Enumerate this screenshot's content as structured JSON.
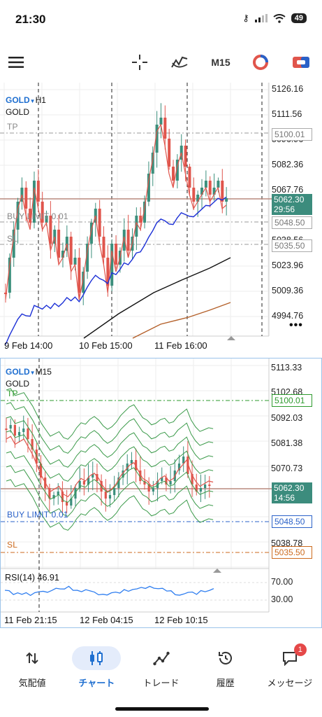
{
  "status": {
    "time": "21:30",
    "battery": "49"
  },
  "toolbar": {
    "timeframe": "M15"
  },
  "chart1": {
    "symbol": "GOLD",
    "timeframe": "H1",
    "description": "GOLD",
    "levels": {
      "tp": "TP",
      "buy_limit": "BUY LIMIT 0.01",
      "sl": "SL"
    },
    "price_labels": [
      "5126.16",
      "5111.56",
      "5096.96",
      "5082.36",
      "5067.76",
      "5038.56",
      "5023.96",
      "5009.36",
      "4994.76"
    ],
    "tp_box": "5100.01",
    "current_price": "5062.30",
    "countdown": "29:56",
    "buy_box": "5048.50",
    "sl_box": "5035.50",
    "time_labels": [
      "9 Feb 14:00",
      "10 Feb 15:00",
      "11 Feb 16:00"
    ],
    "more": "•••"
  },
  "chart2": {
    "symbol": "GOLD",
    "timeframe": "M15",
    "description": "GOLD",
    "levels": {
      "tp": "TP",
      "buy_limit": "BUY LIMIT 0.01",
      "sl": "SL"
    },
    "price_labels": [
      "5113.33",
      "5102.68",
      "5092.03",
      "5081.38",
      "5070.73",
      "5038.78"
    ],
    "tp_box": "5100.01",
    "current_price": "5062.30",
    "countdown": "14:56",
    "buy_box": "5048.50",
    "sl_box": "5035.50",
    "rsi_label": "RSI(14) 46.91",
    "rsi_levels": [
      "70.00",
      "30.00"
    ],
    "time_labels": [
      "11 Feb 21:15",
      "12 Feb 04:15",
      "12 Feb 10:15"
    ]
  },
  "nav": [
    {
      "label": "気配値",
      "icon": "quotes-icon"
    },
    {
      "label": "チャート",
      "icon": "chart-icon",
      "active": true
    },
    {
      "label": "トレード",
      "icon": "trade-icon"
    },
    {
      "label": "履歴",
      "icon": "history-icon"
    },
    {
      "label": "メッセージ",
      "icon": "messages-icon",
      "badge": "1"
    }
  ],
  "colors": {
    "bull": "#3b8f7c",
    "bear": "#e0554c",
    "accent": "#1f6fd0",
    "tp": "#2d9a2d",
    "sl": "#cc6a1d",
    "buy": "#2a61c8"
  }
}
